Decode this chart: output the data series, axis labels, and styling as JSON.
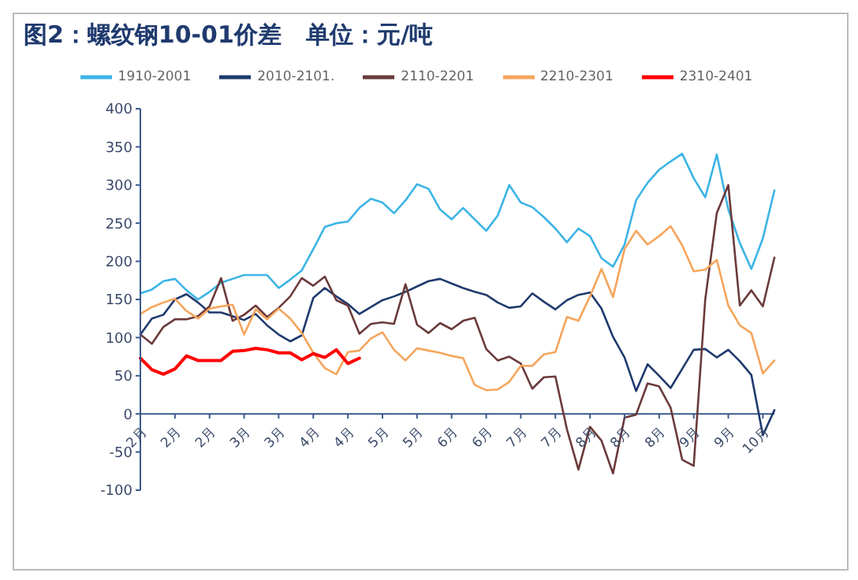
{
  "chart_data": {
    "type": "line",
    "title": "图2：螺纹钢10-01价差   单位：元/吨",
    "categories": [
      "2月",
      null,
      null,
      "2月",
      null,
      null,
      "2月",
      null,
      null,
      "3月",
      null,
      null,
      "3月",
      null,
      null,
      "4月",
      null,
      null,
      "4月",
      null,
      null,
      "5月",
      null,
      null,
      "5月",
      null,
      null,
      "6月",
      null,
      null,
      "6月",
      null,
      null,
      "7月",
      null,
      null,
      "7月",
      null,
      null,
      "8月",
      null,
      null,
      "8月",
      null,
      null,
      "8月",
      null,
      null,
      "9月",
      null,
      null,
      "9月",
      null,
      null,
      "10月",
      null
    ],
    "ylim": [
      -100,
      400
    ],
    "yticks": [
      -100,
      -50,
      0,
      50,
      100,
      150,
      200,
      250,
      300,
      350,
      400
    ],
    "legend": "top",
    "marker": "none",
    "line_style": "solid",
    "series": [
      {
        "name": "1910-2001",
        "color": "#3cb4e5",
        "values": [
          158,
          163,
          174,
          177,
          162,
          150,
          160,
          172,
          177,
          182,
          182,
          182,
          165,
          176,
          188,
          216,
          245,
          250,
          252,
          270,
          282,
          277,
          263,
          280,
          301,
          295,
          268,
          255,
          270,
          255,
          240,
          260,
          300,
          277,
          271,
          258,
          243,
          225,
          243,
          233,
          204,
          193,
          222,
          280,
          303,
          320,
          331,
          341,
          309,
          284,
          340,
          268,
          224,
          190,
          230,
          293
        ]
      },
      {
        "name": "2010-2101.",
        "color": "#1f3a6e",
        "values": [
          104,
          125,
          130,
          150,
          157,
          146,
          133,
          133,
          128,
          123,
          131,
          116,
          104,
          95,
          103,
          152,
          165,
          154,
          144,
          131,
          140,
          149,
          154,
          160,
          167,
          174,
          177,
          171,
          165,
          160,
          156,
          146,
          139,
          141,
          158,
          147,
          137,
          149,
          156,
          159,
          138,
          101,
          74,
          30,
          65,
          50,
          34,
          59,
          84,
          85,
          74,
          84,
          69,
          51,
          -28,
          5
        ]
      },
      {
        "name": "2110-2201",
        "color": "#6b3a3a",
        "values": [
          104,
          92,
          114,
          124,
          124,
          128,
          141,
          178,
          122,
          130,
          142,
          127,
          139,
          154,
          178,
          168,
          180,
          149,
          142,
          105,
          118,
          120,
          118,
          170,
          117,
          106,
          119,
          111,
          122,
          126,
          85,
          70,
          75,
          66,
          33,
          48,
          49,
          -20,
          -73,
          -17,
          -35,
          -78,
          -5,
          -1,
          40,
          36,
          8,
          -60,
          -68,
          150,
          263,
          300,
          142,
          162,
          141,
          205
        ]
      },
      {
        "name": "2210-2301",
        "color": "#f5a55c",
        "values": [
          131,
          140,
          146,
          151,
          135,
          125,
          138,
          141,
          143,
          104,
          137,
          124,
          138,
          125,
          106,
          80,
          60,
          52,
          81,
          83,
          99,
          107,
          84,
          70,
          86,
          83,
          80,
          76,
          73,
          38,
          31,
          32,
          42,
          63,
          63,
          78,
          81,
          127,
          122,
          154,
          190,
          153,
          216,
          240,
          222,
          233,
          246,
          221,
          187,
          189,
          202,
          142,
          116,
          106,
          53,
          70
        ]
      },
      {
        "name": "2310-2401",
        "color": "#ff0000",
        "values": [
          73,
          58,
          52,
          59,
          76,
          70,
          70,
          70,
          82,
          83,
          86,
          84,
          80,
          80,
          71,
          79,
          74,
          84,
          66,
          73,
          null,
          null,
          null,
          null,
          null,
          null,
          null,
          null,
          null,
          null,
          null,
          null,
          null,
          null,
          null,
          null,
          null,
          null,
          null,
          null,
          null,
          null,
          null,
          null,
          null,
          null,
          null,
          null,
          null,
          null,
          null,
          null,
          null,
          null,
          null,
          null
        ]
      }
    ]
  }
}
